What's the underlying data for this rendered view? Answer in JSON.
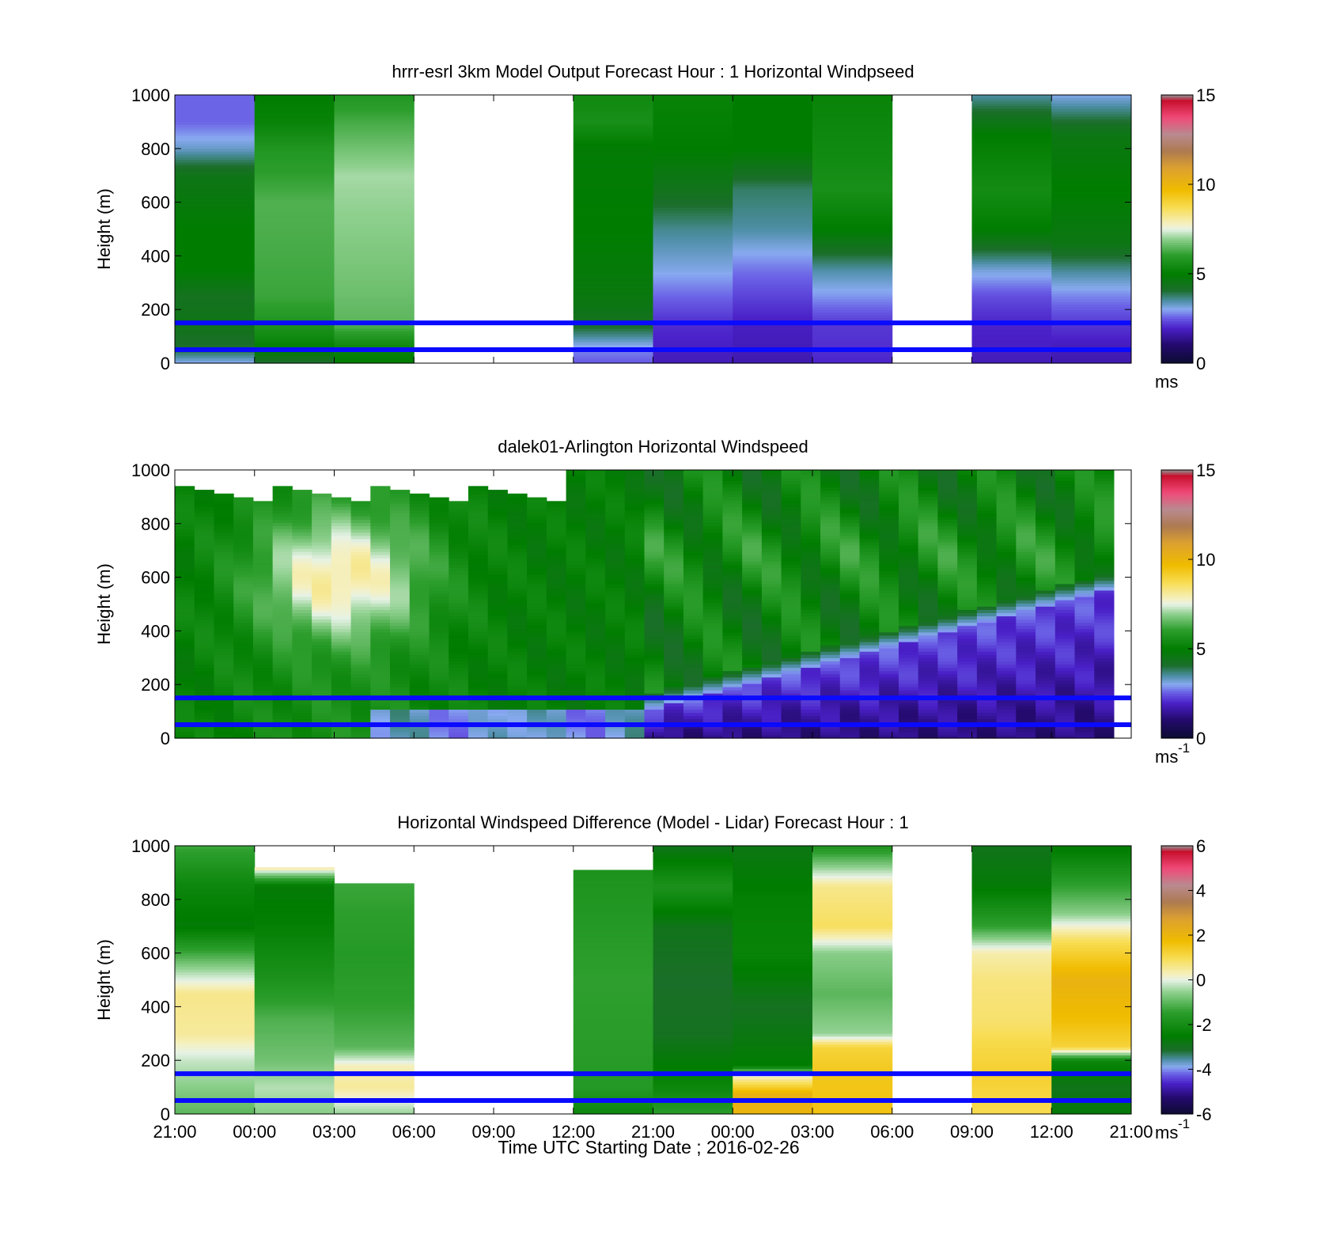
{
  "xaxis": {
    "ticks": [
      "21:00",
      "00:00",
      "03:00",
      "06:00",
      "09:00",
      "12:00",
      "21:00",
      "00:00",
      "03:00",
      "06:00",
      "09:00",
      "12:00",
      "21:00"
    ],
    "label": "Time UTC  Starting Date ; 2016-02-26"
  },
  "chart_data": [
    {
      "type": "heatmap",
      "title": "hrrr-esrl 3km Model Output   Forecast Hour : 1 Horizontal Windpseed",
      "ylabel": "Height (m)",
      "ylim": [
        0,
        1000
      ],
      "yticks": [
        "0",
        "200",
        "400",
        "600",
        "800",
        "1000"
      ],
      "colorbar": {
        "range": [
          0,
          15
        ],
        "ticks": [
          "0",
          "5",
          "10",
          "15"
        ],
        "unit": "ms"
      },
      "reference_lines_m": [
        50,
        150
      ],
      "columns": [
        {
          "x": "21:00",
          "profile_ms": [
            [
              0,
              3.0
            ],
            [
              50,
              4.0
            ],
            [
              150,
              4.5
            ],
            [
              250,
              4.3
            ],
            [
              350,
              5.0
            ],
            [
              500,
              5.0
            ],
            [
              700,
              4.5
            ],
            [
              800,
              3.3
            ],
            [
              900,
              2.6
            ],
            [
              1000,
              2.6
            ]
          ]
        },
        {
          "x": "00:00",
          "profile_ms": [
            [
              0,
              4.0
            ],
            [
              50,
              5.0
            ],
            [
              150,
              5.8
            ],
            [
              250,
              6.2
            ],
            [
              400,
              6.3
            ],
            [
              600,
              6.4
            ],
            [
              800,
              5.8
            ],
            [
              900,
              5.2
            ],
            [
              1000,
              5.0
            ]
          ]
        },
        {
          "x": "03:00",
          "profile_ms": [
            [
              0,
              5.0
            ],
            [
              50,
              5.2
            ],
            [
              150,
              6.5
            ],
            [
              300,
              6.7
            ],
            [
              500,
              6.9
            ],
            [
              700,
              7.1
            ],
            [
              900,
              6.3
            ],
            [
              1000,
              5.8
            ]
          ]
        },
        {
          "x": "06:00",
          "profile_ms": null
        },
        {
          "x": "09:00",
          "profile_ms": null
        },
        {
          "x": "12:00",
          "profile_ms": [
            [
              0,
              2.5
            ],
            [
              50,
              2.8
            ],
            [
              150,
              4.3
            ],
            [
              250,
              4.7
            ],
            [
              500,
              5.0
            ],
            [
              800,
              4.9
            ],
            [
              900,
              5.6
            ],
            [
              1000,
              5.4
            ]
          ]
        },
        {
          "x": "21:00",
          "profile_ms": [
            [
              0,
              1.8
            ],
            [
              50,
              1.9
            ],
            [
              150,
              2.1
            ],
            [
              250,
              2.6
            ],
            [
              350,
              3.1
            ],
            [
              500,
              3.6
            ],
            [
              650,
              4.4
            ],
            [
              800,
              5.0
            ],
            [
              1000,
              5.2
            ]
          ]
        },
        {
          "x": "00:00",
          "profile_ms": [
            [
              0,
              1.7
            ],
            [
              50,
              1.8
            ],
            [
              150,
              1.9
            ],
            [
              250,
              2.3
            ],
            [
              350,
              2.7
            ],
            [
              500,
              3.5
            ],
            [
              650,
              3.8
            ],
            [
              800,
              5.0
            ],
            [
              1000,
              5.0
            ]
          ]
        },
        {
          "x": "03:00",
          "profile_ms": [
            [
              0,
              2.0
            ],
            [
              50,
              2.1
            ],
            [
              150,
              2.2
            ],
            [
              250,
              2.9
            ],
            [
              350,
              3.5
            ],
            [
              500,
              5.0
            ],
            [
              650,
              5.6
            ],
            [
              800,
              5.4
            ],
            [
              1000,
              5.2
            ]
          ]
        },
        {
          "x": "06:00",
          "profile_ms": null
        },
        {
          "x": "09:00",
          "profile_ms": [
            [
              0,
              1.8
            ],
            [
              50,
              1.9
            ],
            [
              150,
              2.0
            ],
            [
              250,
              2.4
            ],
            [
              350,
              3.2
            ],
            [
              500,
              5.0
            ],
            [
              650,
              5.5
            ],
            [
              850,
              5.0
            ],
            [
              1000,
              3.5
            ]
          ]
        },
        {
          "x": "12:00",
          "profile_ms": [
            [
              0,
              1.7
            ],
            [
              50,
              1.8
            ],
            [
              150,
              2.2
            ],
            [
              250,
              2.8
            ],
            [
              350,
              3.6
            ],
            [
              450,
              4.6
            ],
            [
              650,
              5.0
            ],
            [
              850,
              4.6
            ],
            [
              1000,
              3.1
            ]
          ]
        }
      ]
    },
    {
      "type": "heatmap",
      "title": "dalek01-Arlington  Horizontal Windspeed",
      "ylabel": "Height (m)",
      "ylim": [
        0,
        1000
      ],
      "yticks": [
        "0",
        "200",
        "400",
        "600",
        "800",
        "1000"
      ],
      "colorbar": {
        "range": [
          0,
          15
        ],
        "ticks": [
          "0",
          "5",
          "10",
          "15"
        ],
        "unit": "ms",
        "unit_exp": "-1"
      },
      "reference_lines_m": [
        50,
        150
      ],
      "time_columns": 48,
      "summary": {
        "first_day": "4-6 ms throughout, up to about 7-8 ms near 500-700 m around 03:00; 2.5-3.5 ms near the surface after 03:00",
        "second_day": "1-2.5 ms below a layer that deepens from about 100 m at 21:00 to 550 m by 12:00, 4.5-6 ms above it"
      }
    },
    {
      "type": "heatmap",
      "title": "Horizontal Windspeed Difference (Model - Lidar) Forecast Hour : 1",
      "ylabel": "Height (m)",
      "ylim": [
        0,
        1000
      ],
      "yticks": [
        "0",
        "200",
        "400",
        "600",
        "800",
        "1000"
      ],
      "colorbar": {
        "range": [
          -6,
          6
        ],
        "ticks": [
          "-6",
          "-4",
          "-2",
          "0",
          "2",
          "4",
          "6"
        ],
        "unit": "ms",
        "unit_exp": "-1"
      },
      "reference_lines_m": [
        50,
        150
      ],
      "columns": [
        {
          "x": "21:00",
          "top": 1000,
          "profile_ms": [
            [
              0,
              -1.0
            ],
            [
              100,
              -0.6
            ],
            [
              200,
              -0.2
            ],
            [
              300,
              0.5
            ],
            [
              450,
              0.6
            ],
            [
              550,
              -0.6
            ],
            [
              700,
              -2.6
            ],
            [
              850,
              -2.2
            ],
            [
              1000,
              -1.3
            ]
          ]
        },
        {
          "x": "00:00",
          "top": 920,
          "profile_ms": [
            [
              0,
              -0.6
            ],
            [
              100,
              -0.3
            ],
            [
              200,
              -0.8
            ],
            [
              350,
              -1.1
            ],
            [
              500,
              -1.8
            ],
            [
              700,
              -2.4
            ],
            [
              850,
              -2.6
            ],
            [
              920,
              0.5
            ]
          ]
        },
        {
          "x": "03:00",
          "top": 860,
          "profile_ms": [
            [
              0,
              -0.5
            ],
            [
              100,
              0.5
            ],
            [
              180,
              0.3
            ],
            [
              250,
              -1.0
            ],
            [
              400,
              -1.4
            ],
            [
              600,
              -1.6
            ],
            [
              860,
              -1.3
            ]
          ]
        },
        {
          "x": "06:00",
          "profile_ms": null
        },
        {
          "x": "09:00",
          "profile_ms": null
        },
        {
          "x": "12:00",
          "top": 910,
          "profile_ms": [
            [
              0,
              -2.2
            ],
            [
              100,
              -1.6
            ],
            [
              300,
              -1.5
            ],
            [
              500,
              -1.4
            ],
            [
              700,
              -1.6
            ],
            [
              910,
              -1.8
            ]
          ]
        },
        {
          "x": "21:00",
          "top": 1000,
          "profile_ms": [
            [
              0,
              -1.5
            ],
            [
              100,
              -2.2
            ],
            [
              300,
              -3.0
            ],
            [
              500,
              -3.1
            ],
            [
              700,
              -2.9
            ],
            [
              850,
              -1.8
            ],
            [
              1000,
              -2.9
            ]
          ]
        },
        {
          "x": "00:00",
          "top": 1000,
          "profile_ms": [
            [
              0,
              2.0
            ],
            [
              70,
              2.2
            ],
            [
              150,
              0.0
            ],
            [
              180,
              -2.5
            ],
            [
              400,
              -3.0
            ],
            [
              600,
              -2.3
            ],
            [
              800,
              -2.4
            ],
            [
              1000,
              -2.8
            ]
          ]
        },
        {
          "x": "03:00",
          "top": 1000,
          "profile_ms": [
            [
              0,
              1.6
            ],
            [
              150,
              1.5
            ],
            [
              250,
              1.2
            ],
            [
              300,
              -0.5
            ],
            [
              450,
              -1.0
            ],
            [
              600,
              -0.6
            ],
            [
              700,
              0.9
            ],
            [
              850,
              0.6
            ],
            [
              1000,
              -1.8
            ]
          ]
        },
        {
          "x": "06:00",
          "profile_ms": null
        },
        {
          "x": "09:00",
          "top": 1000,
          "profile_ms": [
            [
              0,
              1.0
            ],
            [
              150,
              1.3
            ],
            [
              250,
              1.1
            ],
            [
              350,
              0.8
            ],
            [
              500,
              0.7
            ],
            [
              600,
              0.4
            ],
            [
              700,
              -1.4
            ],
            [
              850,
              -2.6
            ],
            [
              1000,
              -2.9
            ]
          ]
        },
        {
          "x": "12:00",
          "top": 1000,
          "profile_ms": [
            [
              0,
              -2.6
            ],
            [
              100,
              -2.9
            ],
            [
              200,
              -2.2
            ],
            [
              250,
              1.2
            ],
            [
              350,
              1.7
            ],
            [
              500,
              2.1
            ],
            [
              650,
              0.9
            ],
            [
              750,
              -0.6
            ],
            [
              900,
              -1.8
            ],
            [
              1000,
              -2.6
            ]
          ]
        }
      ]
    }
  ]
}
